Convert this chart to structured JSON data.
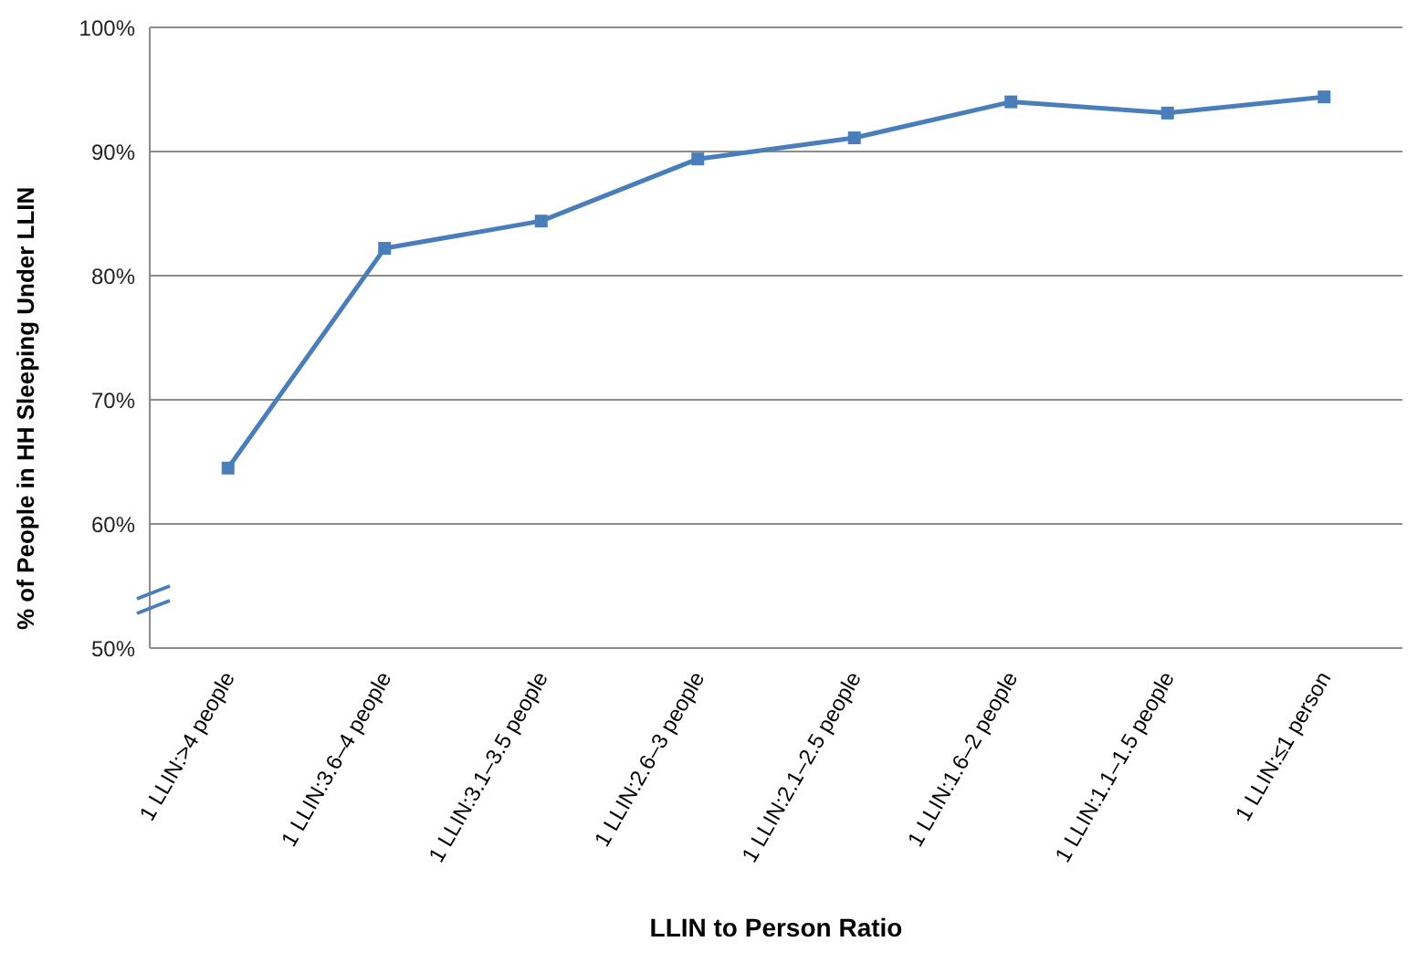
{
  "chart_data": {
    "type": "line",
    "xlabel": "LLIN to Person Ratio",
    "ylabel": "% of People in HH Sleeping Under LLIN",
    "categories": [
      "1 LLIN:>4 people",
      "1 LLIN:3.6–4  people",
      "1 LLIN:3.1–3.5  people",
      "1 LLIN:2.6–3  people",
      "1 LLIN:2.1–2.5  people",
      "1 LLIN:1.6–2  people",
      "1 LLIN:1.1–1.5  people",
      "1 LLIN:≤1  person"
    ],
    "series": [
      {
        "color": "#4a7ebb",
        "values": [
          64.5,
          82.2,
          84.4,
          89.4,
          91.1,
          94.0,
          93.1,
          94.4
        ]
      }
    ],
    "ylim": [
      50,
      100
    ],
    "yticks": [
      {
        "value": 50,
        "label": "50%"
      },
      {
        "value": 60,
        "label": "60%"
      },
      {
        "value": 70,
        "label": "70%"
      },
      {
        "value": 80,
        "label": "80%"
      },
      {
        "value": 90,
        "label": "90%"
      },
      {
        "value": 100,
        "label": "100%"
      }
    ],
    "grid": "y",
    "marker": "square",
    "line_style": "solid",
    "legend": false
  }
}
